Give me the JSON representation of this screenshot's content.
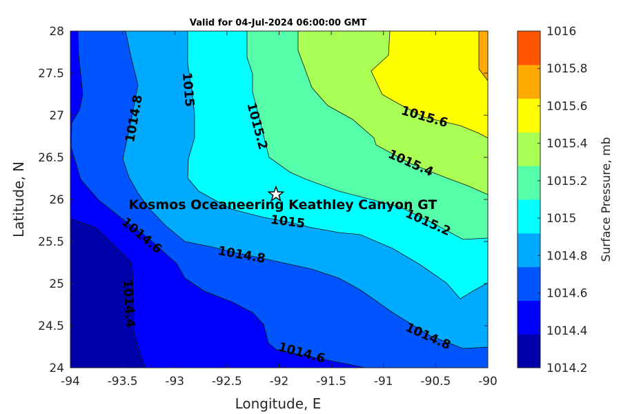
{
  "chart_data": {
    "type": "filled-contour",
    "title": "Valid for 04-Jul-2024 06:00:00 GMT",
    "xlabel": "Longitude, E",
    "ylabel": "Latitude, N",
    "xlim": [
      -94,
      -90
    ],
    "ylim": [
      24,
      28
    ],
    "xticks": [
      "-94",
      "-93.5",
      "-93",
      "-92.5",
      "-92",
      "-91.5",
      "-91",
      "-90.5",
      "-90"
    ],
    "yticks": [
      "24",
      "24.5",
      "25",
      "25.5",
      "26",
      "26.5",
      "27",
      "27.5",
      "28"
    ],
    "colorbar": {
      "label": "Surface Pressure, mb",
      "ticks": [
        "1014.2",
        "1014.4",
        "1014.6",
        "1014.8",
        "1015",
        "1015.2",
        "1015.4",
        "1015.6",
        "1015.8",
        "1016"
      ],
      "range": [
        1014.2,
        1016
      ],
      "colors": [
        "#0000aa",
        "#0000ff",
        "#0055ff",
        "#00aaff",
        "#00ffff",
        "#55ffaa",
        "#aaff55",
        "#ffff00",
        "#ffaa00",
        "#ff5500"
      ]
    },
    "contour_levels": [
      1014.4,
      1014.6,
      1014.8,
      1015,
      1015.2,
      1015.4,
      1015.6,
      1015.8
    ],
    "contour_labels": [
      "1014.8",
      "1015",
      "1015.2",
      "1015.6",
      "1015.4",
      "1015.2",
      "1015",
      "1014.8",
      "1014.6",
      "1014.4",
      "1014.8",
      "1014.6"
    ],
    "station": {
      "name": "Kosmos Oceaneering Keathley Canyon GT",
      "lon": -92.03,
      "lat": 26.06,
      "marker": "star-icon"
    },
    "grid": false
  }
}
